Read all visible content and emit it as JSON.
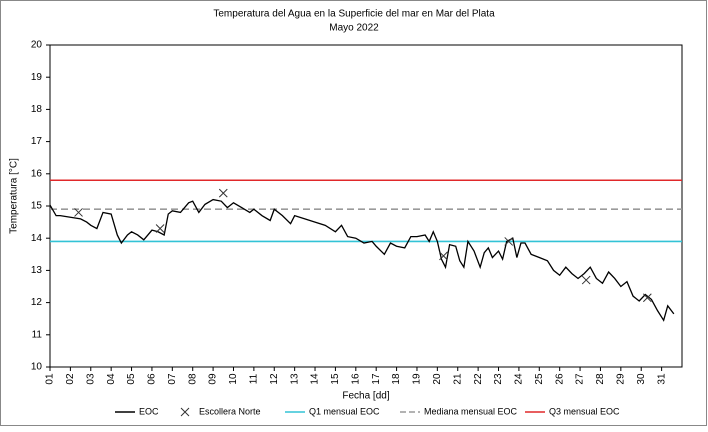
{
  "chart_data": {
    "type": "line",
    "title": "Temperatura del Agua en la Superficie del mar en Mar del Plata",
    "subtitle": "Mayo 2022",
    "xlabel": "Fecha [dd]",
    "ylabel": "Temperatura [°C]",
    "xlim": [
      1,
      32
    ],
    "ylim": [
      10,
      20
    ],
    "yticks": [
      10,
      11,
      12,
      13,
      14,
      15,
      16,
      17,
      18,
      19,
      20
    ],
    "xticks": [
      {
        "value": 1,
        "label": "01"
      },
      {
        "value": 2,
        "label": "02"
      },
      {
        "value": 3,
        "label": "03"
      },
      {
        "value": 4,
        "label": "04"
      },
      {
        "value": 5,
        "label": "05"
      },
      {
        "value": 6,
        "label": "06"
      },
      {
        "value": 7,
        "label": "07"
      },
      {
        "value": 8,
        "label": "08"
      },
      {
        "value": 9,
        "label": "09"
      },
      {
        "value": 10,
        "label": "10"
      },
      {
        "value": 11,
        "label": "11"
      },
      {
        "value": 12,
        "label": "12"
      },
      {
        "value": 13,
        "label": "13"
      },
      {
        "value": 14,
        "label": "14"
      },
      {
        "value": 15,
        "label": "15"
      },
      {
        "value": 16,
        "label": "16"
      },
      {
        "value": 17,
        "label": "17"
      },
      {
        "value": 18,
        "label": "18"
      },
      {
        "value": 19,
        "label": "19"
      },
      {
        "value": 20,
        "label": "20"
      },
      {
        "value": 21,
        "label": "21"
      },
      {
        "value": 22,
        "label": "22"
      },
      {
        "value": 23,
        "label": "23"
      },
      {
        "value": 24,
        "label": "24"
      },
      {
        "value": 25,
        "label": "25"
      },
      {
        "value": 26,
        "label": "26"
      },
      {
        "value": 27,
        "label": "27"
      },
      {
        "value": 28,
        "label": "28"
      },
      {
        "value": 29,
        "label": "29"
      },
      {
        "value": 30,
        "label": "30"
      },
      {
        "value": 31,
        "label": "31"
      }
    ],
    "series": [
      {
        "name": "EOC",
        "color": "#000000",
        "marker": "line",
        "x": [
          1.0,
          1.3,
          1.5,
          2.0,
          2.5,
          2.8,
          3.0,
          3.3,
          3.6,
          4.0,
          4.3,
          4.5,
          4.8,
          5.0,
          5.3,
          5.6,
          6.0,
          6.3,
          6.6,
          6.8,
          7.0,
          7.4,
          7.8,
          8.0,
          8.3,
          8.6,
          9.0,
          9.4,
          9.7,
          10.0,
          10.4,
          10.8,
          11.0,
          11.4,
          11.8,
          12.0,
          12.4,
          12.8,
          13.0,
          13.5,
          14.0,
          14.5,
          15.0,
          15.3,
          15.6,
          16.0,
          16.4,
          16.8,
          17.0,
          17.4,
          17.7,
          18.0,
          18.4,
          18.7,
          19.0,
          19.4,
          19.6,
          19.8,
          20.0,
          20.2,
          20.4,
          20.6,
          20.9,
          21.1,
          21.3,
          21.5,
          21.8,
          22.1,
          22.3,
          22.5,
          22.7,
          23.0,
          23.2,
          23.4,
          23.7,
          23.9,
          24.1,
          24.3,
          24.6,
          25.0,
          25.4,
          25.7,
          26.0,
          26.3,
          26.6,
          26.9,
          27.2,
          27.5,
          27.8,
          28.1,
          28.4,
          28.7,
          29.0,
          29.3,
          29.6,
          29.9,
          30.2,
          30.5,
          30.8,
          31.1,
          31.3,
          31.6
        ],
        "values": [
          15.03,
          14.7,
          14.7,
          14.65,
          14.6,
          14.5,
          14.4,
          14.3,
          14.8,
          14.75,
          14.1,
          13.85,
          14.1,
          14.2,
          14.1,
          13.95,
          14.25,
          14.2,
          14.1,
          14.75,
          14.85,
          14.8,
          15.1,
          15.15,
          14.8,
          15.05,
          15.2,
          15.15,
          14.95,
          15.1,
          14.95,
          14.8,
          14.9,
          14.7,
          14.55,
          14.9,
          14.7,
          14.45,
          14.7,
          14.6,
          14.5,
          14.4,
          14.2,
          14.4,
          14.05,
          14.0,
          13.85,
          13.9,
          13.75,
          13.5,
          13.85,
          13.75,
          13.7,
          14.05,
          14.05,
          14.1,
          13.9,
          14.2,
          13.9,
          13.35,
          13.1,
          13.8,
          13.75,
          13.3,
          13.1,
          13.9,
          13.6,
          13.1,
          13.55,
          13.7,
          13.4,
          13.6,
          13.35,
          13.9,
          14.0,
          13.4,
          13.85,
          13.85,
          13.5,
          13.4,
          13.3,
          13.0,
          12.85,
          13.1,
          12.9,
          12.75,
          12.9,
          13.1,
          12.75,
          12.6,
          12.95,
          12.75,
          12.5,
          12.65,
          12.2,
          12.05,
          12.25,
          12.1,
          11.75,
          11.45,
          11.9,
          11.65
        ]
      },
      {
        "name": "Escollera Norte",
        "color": "#333333",
        "marker": "x",
        "x": [
          2.4,
          6.4,
          9.5,
          20.3,
          23.5,
          27.3,
          30.3
        ],
        "values": [
          14.8,
          14.3,
          15.4,
          13.45,
          13.9,
          12.7,
          12.15
        ]
      }
    ],
    "reference_lines": [
      {
        "name": "Q1 mensual EOC",
        "color": "#33c3d6",
        "value": 13.9,
        "dashed": false
      },
      {
        "name": "Mediana mensual EOC",
        "color": "#9a9a9a",
        "value": 14.9,
        "dashed": true
      },
      {
        "name": "Q3 mensual EOC",
        "color": "#e0282a",
        "value": 15.8,
        "dashed": false
      }
    ],
    "legend": "bottom"
  }
}
